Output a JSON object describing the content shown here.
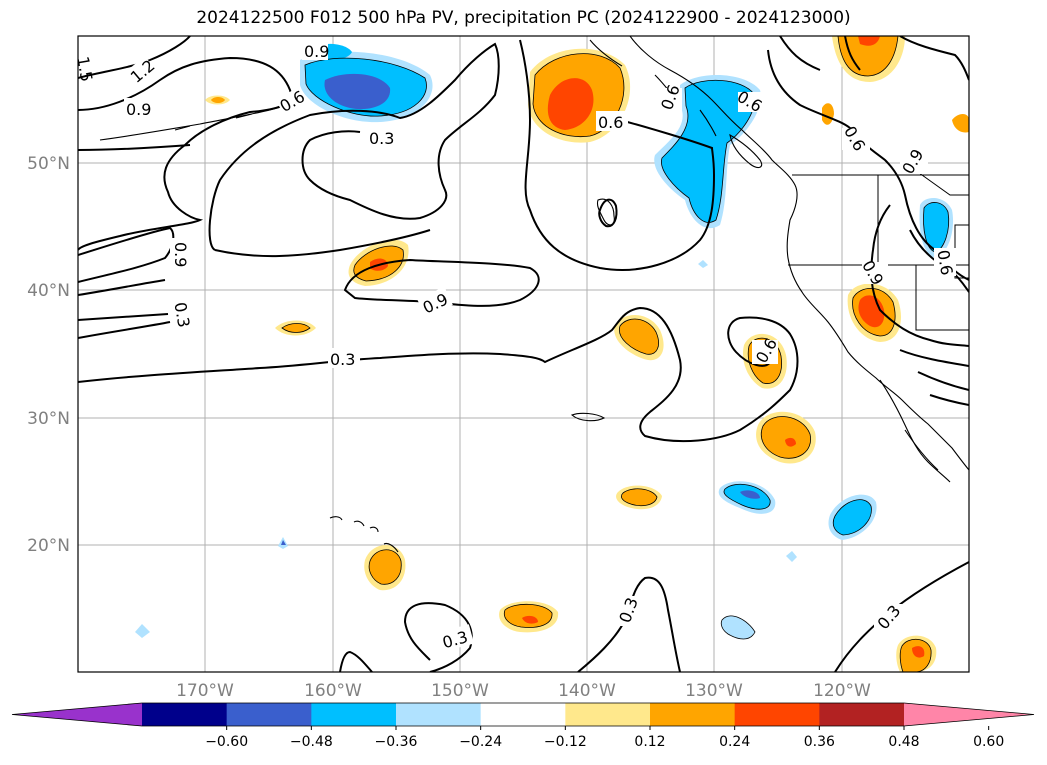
{
  "title": "2024122500 F012 500 hPa PV, precipitation PC (2024122900 - 2024123000)",
  "map": {
    "lat_labels": [
      "50°N",
      "40°N",
      "30°N",
      "20°N"
    ],
    "lon_labels": [
      "170°W",
      "160°W",
      "150°W",
      "140°W",
      "130°W",
      "120°W"
    ],
    "contour_labels": [
      "1.2",
      "0.9",
      "0.9",
      "0.6",
      "0.3",
      "0.9",
      "0.3",
      "0.9",
      "0.3",
      "0.6",
      "0.6",
      "0.6",
      "0.6",
      "0.9",
      "0.9",
      "0.6",
      "0.6",
      "0.3",
      "0.3",
      "0.3",
      "1.5"
    ]
  },
  "colorbar": {
    "ticks": [
      "−0.60",
      "−0.48",
      "−0.36",
      "−0.24",
      "−0.12",
      "0.12",
      "0.24",
      "0.36",
      "0.48",
      "0.60"
    ],
    "colors": [
      "#9932cc",
      "#00008b",
      "#3a5fcd",
      "#00bfff",
      "#b0e2ff",
      "#ffffff",
      "#ffe88c",
      "#ffa500",
      "#ff4500",
      "#b22222",
      "#ff85a8"
    ]
  }
}
